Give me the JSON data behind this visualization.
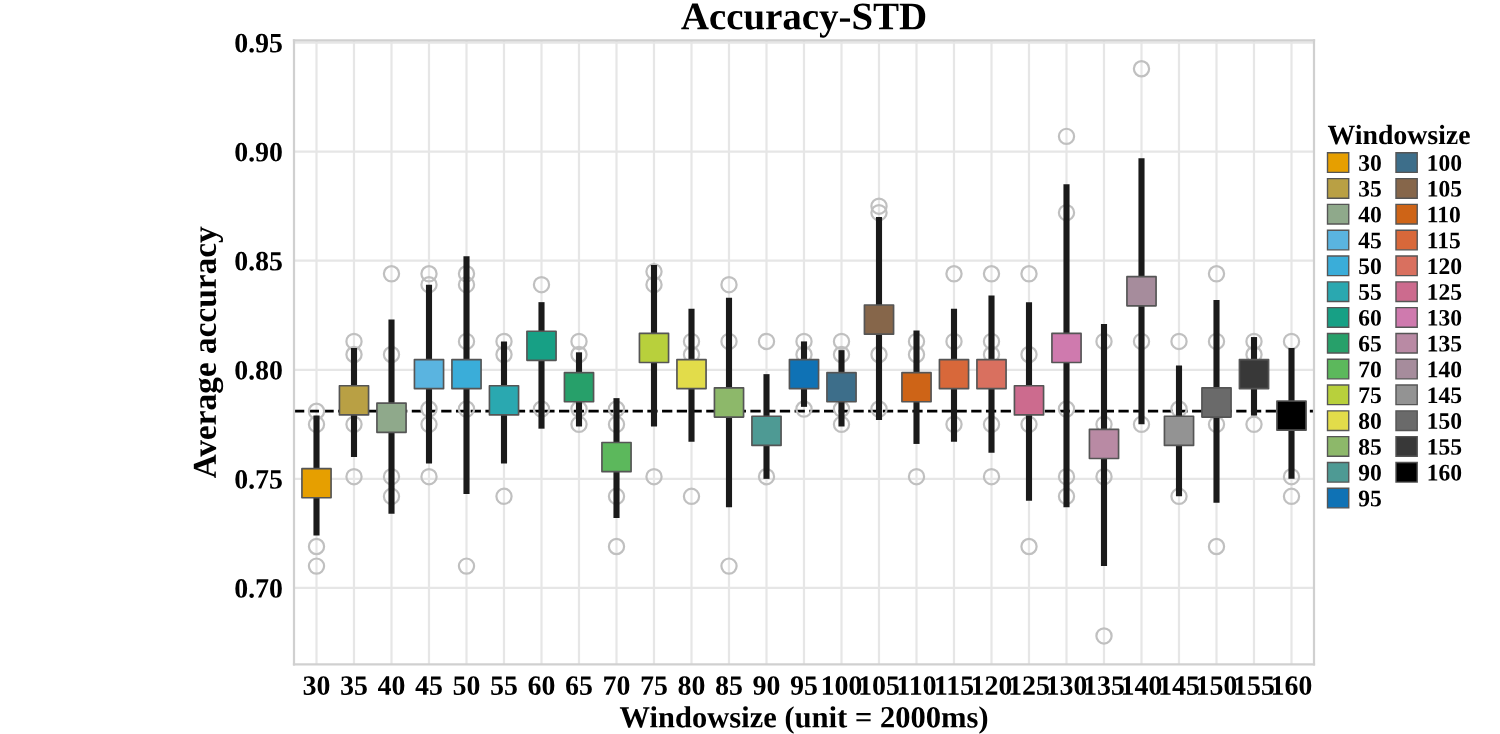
{
  "chart_data": {
    "type": "scatter",
    "title": "Accuracy-STD",
    "xlabel": "Windowsize (unit = 2000ms)",
    "ylabel": "Average accuracy",
    "legend_title": "Windowsize",
    "categories": [
      "30",
      "35",
      "40",
      "45",
      "50",
      "55",
      "60",
      "65",
      "70",
      "75",
      "80",
      "85",
      "90",
      "95",
      "100",
      "105",
      "110",
      "115",
      "120",
      "125",
      "130",
      "135",
      "140",
      "145",
      "150",
      "155",
      "160"
    ],
    "ylim": [
      0.665,
      0.951
    ],
    "yticks": [
      {
        "value": 0.7,
        "label": "0.70"
      },
      {
        "value": 0.75,
        "label": "0.75"
      },
      {
        "value": 0.8,
        "label": "0.80"
      },
      {
        "value": 0.85,
        "label": "0.85"
      },
      {
        "value": 0.9,
        "label": "0.90"
      },
      {
        "value": 0.95,
        "label": "0.95"
      }
    ],
    "grid": true,
    "legend": "right",
    "ref_lines": [
      {
        "axis": "y",
        "value": 0.781,
        "line_style": "dashed",
        "color": "#000000"
      }
    ],
    "series": [
      {
        "marker": "circle",
        "color": "#c0c0c0",
        "x": [
          "30",
          "30",
          "30",
          "30",
          "35",
          "35",
          "35",
          "35",
          "40",
          "40",
          "40",
          "40",
          "45",
          "45",
          "45",
          "45",
          "45",
          "50",
          "50",
          "50",
          "50",
          "50",
          "55",
          "55",
          "55",
          "60",
          "60",
          "65",
          "65",
          "65",
          "65",
          "70",
          "70",
          "70",
          "70",
          "75",
          "75",
          "75",
          "80",
          "80",
          "80",
          "85",
          "85",
          "85",
          "90",
          "90",
          "95",
          "95",
          "95",
          "100",
          "100",
          "100",
          "100",
          "105",
          "105",
          "105",
          "105",
          "110",
          "110",
          "110",
          "115",
          "115",
          "115",
          "120",
          "120",
          "120",
          "120",
          "120",
          "125",
          "125",
          "125",
          "125",
          "130",
          "130",
          "130",
          "130",
          "130",
          "135",
          "135",
          "135",
          "135",
          "140",
          "140",
          "140",
          "145",
          "145",
          "145",
          "150",
          "150",
          "150",
          "150",
          "155",
          "155",
          "155",
          "160",
          "160",
          "160"
        ],
        "values": [
          0.781,
          0.775,
          0.719,
          0.71,
          0.813,
          0.807,
          0.775,
          0.751,
          0.844,
          0.807,
          0.751,
          0.742,
          0.844,
          0.839,
          0.782,
          0.775,
          0.751,
          0.844,
          0.839,
          0.813,
          0.782,
          0.71,
          0.813,
          0.807,
          0.742,
          0.839,
          0.782,
          0.813,
          0.807,
          0.782,
          0.775,
          0.782,
          0.775,
          0.742,
          0.719,
          0.845,
          0.839,
          0.751,
          0.813,
          0.807,
          0.742,
          0.839,
          0.813,
          0.71,
          0.813,
          0.751,
          0.813,
          0.807,
          0.782,
          0.813,
          0.807,
          0.782,
          0.775,
          0.875,
          0.872,
          0.807,
          0.782,
          0.813,
          0.807,
          0.751,
          0.844,
          0.813,
          0.775,
          0.844,
          0.813,
          0.807,
          0.775,
          0.751,
          0.844,
          0.807,
          0.775,
          0.719,
          0.907,
          0.872,
          0.782,
          0.751,
          0.742,
          0.813,
          0.775,
          0.751,
          0.678,
          0.938,
          0.813,
          0.775,
          0.813,
          0.782,
          0.742,
          0.844,
          0.813,
          0.775,
          0.719,
          0.813,
          0.807,
          0.775,
          0.813,
          0.751,
          0.742
        ]
      },
      {
        "name": "30",
        "marker": "square",
        "color": "#e69f00",
        "x": [
          "30"
        ],
        "values": [
          0.748
        ],
        "errors": [
          [
            0.724,
            0.779
          ]
        ]
      },
      {
        "name": "35",
        "marker": "square",
        "color": "#b9a044",
        "x": [
          "35"
        ],
        "values": [
          0.786
        ],
        "errors": [
          [
            0.76,
            0.81
          ]
        ]
      },
      {
        "name": "40",
        "marker": "square",
        "color": "#8fa98b",
        "x": [
          "40"
        ],
        "values": [
          0.778
        ],
        "errors": [
          [
            0.734,
            0.823
          ]
        ]
      },
      {
        "name": "45",
        "marker": "square",
        "color": "#5ab4e0",
        "x": [
          "45"
        ],
        "values": [
          0.798
        ],
        "errors": [
          [
            0.757,
            0.839
          ]
        ]
      },
      {
        "name": "50",
        "marker": "square",
        "color": "#3aadd9",
        "x": [
          "50"
        ],
        "values": [
          0.798
        ],
        "errors": [
          [
            0.743,
            0.852
          ]
        ]
      },
      {
        "name": "55",
        "marker": "square",
        "color": "#2aa8b0",
        "x": [
          "55"
        ],
        "values": [
          0.786
        ],
        "errors": [
          [
            0.757,
            0.813
          ]
        ]
      },
      {
        "name": "60",
        "marker": "square",
        "color": "#17a085",
        "x": [
          "60"
        ],
        "values": [
          0.811
        ],
        "errors": [
          [
            0.773,
            0.831
          ]
        ]
      },
      {
        "name": "65",
        "marker": "square",
        "color": "#27a06a",
        "x": [
          "65"
        ],
        "values": [
          0.792
        ],
        "errors": [
          [
            0.774,
            0.808
          ]
        ]
      },
      {
        "name": "70",
        "marker": "square",
        "color": "#5cb85c",
        "x": [
          "70"
        ],
        "values": [
          0.76
        ],
        "errors": [
          [
            0.732,
            0.787
          ]
        ]
      },
      {
        "name": "75",
        "marker": "square",
        "color": "#b8d03c",
        "x": [
          "75"
        ],
        "values": [
          0.81
        ],
        "errors": [
          [
            0.774,
            0.848
          ]
        ]
      },
      {
        "name": "80",
        "marker": "square",
        "color": "#e2dc4a",
        "x": [
          "80"
        ],
        "values": [
          0.798
        ],
        "errors": [
          [
            0.767,
            0.828
          ]
        ]
      },
      {
        "name": "85",
        "marker": "square",
        "color": "#8db86a",
        "x": [
          "85"
        ],
        "values": [
          0.785
        ],
        "errors": [
          [
            0.737,
            0.833
          ]
        ]
      },
      {
        "name": "90",
        "marker": "square",
        "color": "#4e9a94",
        "x": [
          "90"
        ],
        "values": [
          0.772
        ],
        "errors": [
          [
            0.75,
            0.798
          ]
        ]
      },
      {
        "name": "95",
        "marker": "square",
        "color": "#0f72b5",
        "x": [
          "95"
        ],
        "values": [
          0.798
        ],
        "errors": [
          [
            0.783,
            0.813
          ]
        ]
      },
      {
        "name": "100",
        "marker": "square",
        "color": "#3d6e8a",
        "x": [
          "100"
        ],
        "values": [
          0.792
        ],
        "errors": [
          [
            0.774,
            0.809
          ]
        ]
      },
      {
        "name": "105",
        "marker": "square",
        "color": "#86664a",
        "x": [
          "105"
        ],
        "values": [
          0.823
        ],
        "errors": [
          [
            0.777,
            0.87
          ]
        ]
      },
      {
        "name": "110",
        "marker": "square",
        "color": "#ce6417",
        "x": [
          "110"
        ],
        "values": [
          0.792
        ],
        "errors": [
          [
            0.766,
            0.818
          ]
        ]
      },
      {
        "name": "115",
        "marker": "square",
        "color": "#d8683a",
        "x": [
          "115"
        ],
        "values": [
          0.798
        ],
        "errors": [
          [
            0.767,
            0.828
          ]
        ]
      },
      {
        "name": "120",
        "marker": "square",
        "color": "#d9705f",
        "x": [
          "120"
        ],
        "values": [
          0.798
        ],
        "errors": [
          [
            0.762,
            0.834
          ]
        ]
      },
      {
        "name": "125",
        "marker": "square",
        "color": "#cc6b8e",
        "x": [
          "125"
        ],
        "values": [
          0.786
        ],
        "errors": [
          [
            0.74,
            0.831
          ]
        ]
      },
      {
        "name": "130",
        "marker": "square",
        "color": "#cf7aae",
        "x": [
          "130"
        ],
        "values": [
          0.81
        ],
        "errors": [
          [
            0.737,
            0.885
          ]
        ]
      },
      {
        "name": "135",
        "marker": "square",
        "color": "#b98aa4",
        "x": [
          "135"
        ],
        "values": [
          0.766
        ],
        "errors": [
          [
            0.71,
            0.821
          ]
        ]
      },
      {
        "name": "140",
        "marker": "square",
        "color": "#a68c9c",
        "x": [
          "140"
        ],
        "values": [
          0.836
        ],
        "errors": [
          [
            0.775,
            0.897
          ]
        ]
      },
      {
        "name": "145",
        "marker": "square",
        "color": "#939393",
        "x": [
          "145"
        ],
        "values": [
          0.772
        ],
        "errors": [
          [
            0.742,
            0.802
          ]
        ]
      },
      {
        "name": "150",
        "marker": "square",
        "color": "#6a6a6a",
        "x": [
          "150"
        ],
        "values": [
          0.785
        ],
        "errors": [
          [
            0.739,
            0.832
          ]
        ]
      },
      {
        "name": "155",
        "marker": "square",
        "color": "#383838",
        "x": [
          "155"
        ],
        "values": [
          0.798
        ],
        "errors": [
          [
            0.779,
            0.815
          ]
        ]
      },
      {
        "name": "160",
        "marker": "square",
        "color": "#000000",
        "x": [
          "160"
        ],
        "values": [
          0.779
        ],
        "errors": [
          [
            0.75,
            0.81
          ]
        ]
      }
    ]
  }
}
